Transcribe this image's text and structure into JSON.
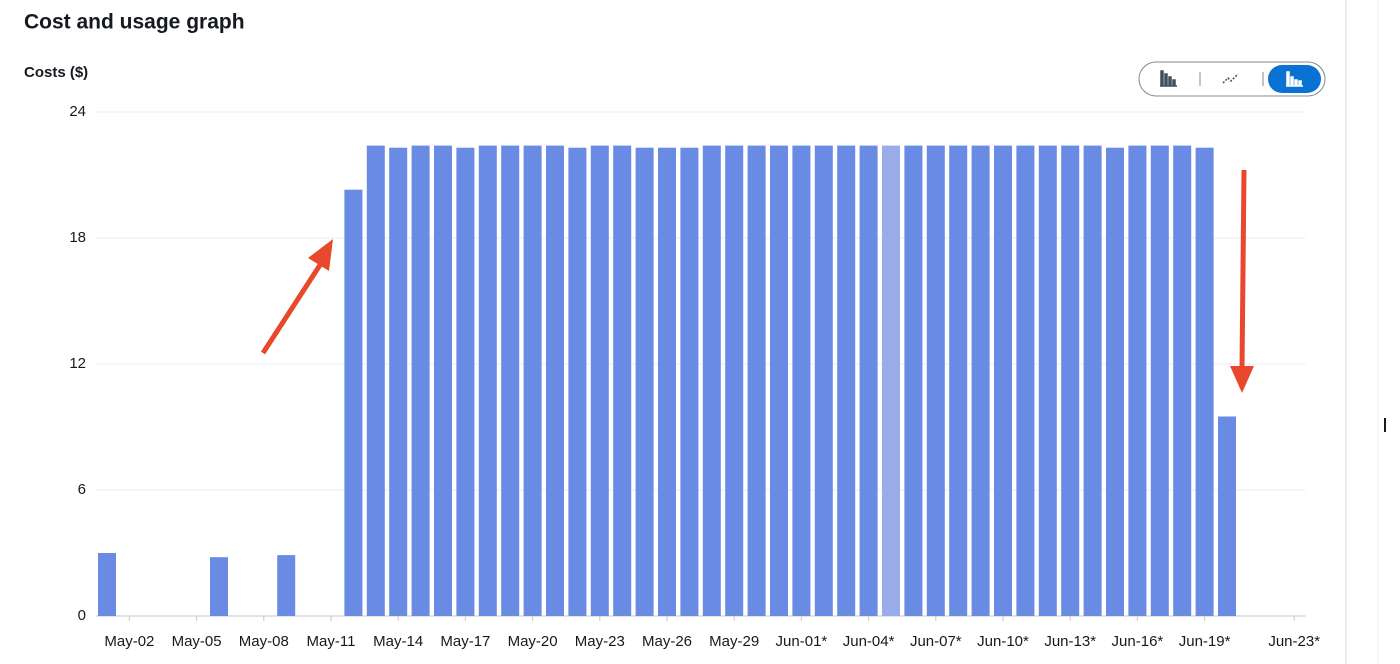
{
  "chart_data": {
    "type": "bar",
    "title": "Cost and usage graph",
    "y_label": "Costs ($)",
    "categories": [
      null,
      "May-02",
      null,
      null,
      "May-05",
      null,
      null,
      "May-08",
      null,
      null,
      "May-11",
      null,
      null,
      "May-14",
      null,
      null,
      "May-17",
      null,
      null,
      "May-20",
      null,
      null,
      "May-23",
      null,
      null,
      "May-26",
      null,
      null,
      "May-29",
      null,
      null,
      "Jun-01*",
      null,
      null,
      "Jun-04*",
      null,
      null,
      "Jun-07*",
      null,
      null,
      "Jun-10*",
      null,
      null,
      "Jun-13*",
      null,
      null,
      "Jun-16*",
      null,
      null,
      "Jun-19*",
      null,
      null,
      null,
      "Jun-23*"
    ],
    "values": [
      3.0,
      0,
      0,
      0,
      0,
      2.8,
      0,
      0,
      2.9,
      0,
      0,
      20.3,
      22.4,
      22.3,
      22.4,
      22.4,
      22.3,
      22.4,
      22.4,
      22.4,
      22.4,
      22.3,
      22.4,
      22.4,
      22.3,
      22.3,
      22.3,
      22.4,
      22.4,
      22.4,
      22.4,
      22.4,
      22.4,
      22.4,
      22.4,
      22.4,
      22.4,
      22.4,
      22.4,
      22.4,
      22.4,
      22.4,
      22.4,
      22.4,
      22.4,
      22.3,
      22.4,
      22.4,
      22.4,
      22.3,
      9.5,
      null,
      null,
      null
    ],
    "colors": [
      "#6a8be4",
      "#6a8be4",
      "#6a8be4",
      "#6a8be4",
      "#6a8be4",
      "#6a8be4",
      "#6a8be4",
      "#6a8be4",
      "#6a8be4",
      "#6a8be4",
      "#6a8be4",
      "#6a8be4",
      "#6a8be4",
      "#6a8be4",
      "#6a8be4",
      "#6a8be4",
      "#6a8be4",
      "#6a8be4",
      "#6a8be4",
      "#6a8be4",
      "#6a8be4",
      "#6a8be4",
      "#6a8be4",
      "#6a8be4",
      "#6a8be4",
      "#6a8be4",
      "#6a8be4",
      "#6a8be4",
      "#6a8be4",
      "#6a8be4",
      "#6a8be4",
      "#6a8be4",
      "#6a8be4",
      "#6a8be4",
      "#6a8be4",
      "#9aabea",
      "#6a8be4",
      "#6a8be4",
      "#6a8be4",
      "#6a8be4",
      "#6a8be4",
      "#6a8be4",
      "#6a8be4",
      "#6a8be4",
      "#6a8be4",
      "#6a8be4",
      "#6a8be4",
      "#6a8be4",
      "#6a8be4",
      "#6a8be4",
      "#6a8be4",
      "#6a8be4",
      "#6a8be4",
      "#6a8be4"
    ],
    "ylim": [
      0,
      24
    ],
    "yticks": [
      0,
      6,
      12,
      18,
      24
    ],
    "grid": true
  }
}
